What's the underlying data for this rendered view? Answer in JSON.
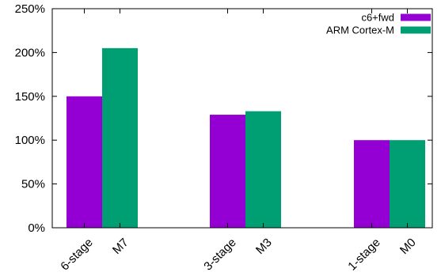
{
  "chart_data": {
    "type": "bar",
    "title": "",
    "xlabel": "",
    "ylabel": "",
    "ylim": [
      0,
      250
    ],
    "yticks": [
      "0%",
      "50%",
      "100%",
      "150%",
      "200%",
      "250%"
    ],
    "grid": false,
    "legend_position": "top-right",
    "groups": [
      {
        "bars": [
          {
            "series": "c6+fwd",
            "label": "6-stage",
            "value": 150
          },
          {
            "series": "ARM Cortex-M",
            "label": "M7",
            "value": 205
          }
        ]
      },
      {
        "bars": [
          {
            "series": "c6+fwd",
            "label": "3-stage",
            "value": 129
          },
          {
            "series": "ARM Cortex-M",
            "label": "M3",
            "value": 133
          }
        ]
      },
      {
        "bars": [
          {
            "series": "c6+fwd",
            "label": "1-stage",
            "value": 100
          },
          {
            "series": "ARM Cortex-M",
            "label": "M0",
            "value": 100
          }
        ]
      }
    ],
    "series": [
      {
        "name": "c6+fwd",
        "color": "#9400d3"
      },
      {
        "name": "ARM Cortex-M",
        "color": "#009e73"
      }
    ]
  }
}
